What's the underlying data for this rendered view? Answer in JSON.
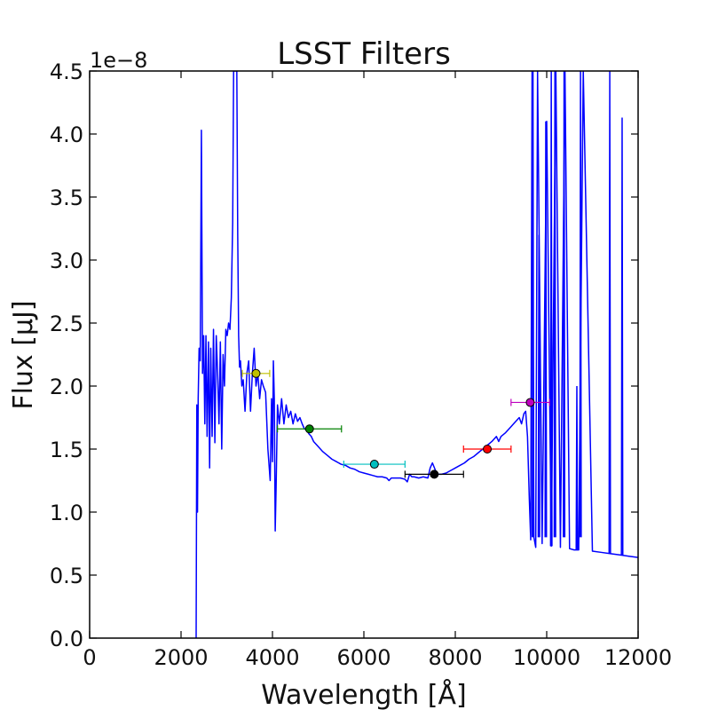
{
  "chart_data": {
    "type": "line",
    "title": "LSST Filters",
    "xlabel": "Wavelength [Å]",
    "ylabel": "Flux [μJ]",
    "offset_text": "1e−8",
    "xlim": [
      0,
      12000
    ],
    "ylim": [
      0,
      4.5
    ],
    "x_ticks": [
      0,
      2000,
      4000,
      6000,
      8000,
      10000,
      12000
    ],
    "x_tick_labels": [
      "0",
      "2000",
      "4000",
      "6000",
      "8000",
      "10000",
      "12000"
    ],
    "y_ticks": [
      0,
      0.5,
      1.0,
      1.5,
      2.0,
      2.5,
      3.0,
      3.5,
      4.0,
      4.5
    ],
    "y_tick_labels": [
      "0.0",
      "0.5",
      "1.0",
      "1.5",
      "2.0",
      "2.5",
      "3.0",
      "3.5",
      "4.0",
      "4.5"
    ],
    "grid": false,
    "spectrum": {
      "color": "#0000ff",
      "x": [
        2330,
        2345,
        2360,
        2375,
        2395,
        2420,
        2445,
        2470,
        2495,
        2520,
        2545,
        2570,
        2600,
        2625,
        2650,
        2680,
        2710,
        2740,
        2770,
        2800,
        2830,
        2860,
        2890,
        2920,
        2950,
        2980,
        3010,
        3040,
        3070,
        3100,
        3130,
        3150,
        3175,
        3200,
        3220,
        3240,
        3260,
        3280,
        3300,
        3330,
        3360,
        3400,
        3440,
        3480,
        3520,
        3560,
        3600,
        3640,
        3680,
        3720,
        3760,
        3800,
        3850,
        3900,
        3950,
        3980,
        4000,
        4020,
        4040,
        4060,
        4080,
        4110,
        4150,
        4200,
        4250,
        4300,
        4350,
        4400,
        4450,
        4500,
        4550,
        4600,
        4650,
        4700,
        4750,
        4800,
        4850,
        4900,
        5000,
        5100,
        5200,
        5300,
        5400,
        5500,
        5600,
        5700,
        5800,
        5900,
        6000,
        6100,
        6200,
        6300,
        6400,
        6500,
        6550,
        6600,
        6700,
        6800,
        6900,
        6950,
        7000,
        7050,
        7100,
        7200,
        7300,
        7400,
        7450,
        7500,
        7600,
        7700,
        7800,
        7900,
        8000,
        8100,
        8200,
        8300,
        8400,
        8500,
        8600,
        8700,
        8800,
        8900,
        8950,
        9000,
        9100,
        9200,
        9300,
        9400,
        9450,
        9500,
        9540,
        9580,
        9620,
        9650,
        9680,
        9720,
        9760,
        9800,
        9900,
        10000,
        10100,
        10200,
        10300,
        10400,
        10500,
        10600,
        10700,
        10800,
        11000,
        11200,
        11400,
        11600,
        11800,
        12000
      ],
      "y": [
        0.0,
        1.85,
        1.0,
        1.9,
        2.3,
        2.2,
        4.03,
        2.1,
        2.4,
        1.7,
        2.4,
        1.6,
        2.35,
        1.35,
        2.3,
        1.6,
        2.45,
        1.55,
        2.4,
        2.1,
        1.7,
        2.35,
        1.5,
        2.25,
        2.0,
        2.45,
        2.4,
        2.5,
        2.45,
        2.7,
        3.3,
        4.5,
        4.5,
        4.5,
        4.5,
        3.2,
        2.4,
        2.15,
        2.2,
        2.0,
        2.05,
        1.8,
        2.1,
        2.2,
        1.8,
        2.1,
        2.3,
        2.0,
        2.1,
        1.9,
        2.05,
        2.0,
        1.95,
        1.5,
        1.25,
        1.9,
        1.4,
        2.2,
        1.9,
        0.85,
        1.2,
        1.85,
        1.7,
        1.9,
        1.7,
        1.85,
        1.75,
        1.8,
        1.7,
        1.78,
        1.72,
        1.75,
        1.7,
        1.66,
        1.65,
        1.62,
        1.6,
        1.56,
        1.52,
        1.48,
        1.45,
        1.42,
        1.4,
        1.38,
        1.37,
        1.35,
        1.34,
        1.32,
        1.31,
        1.3,
        1.29,
        1.28,
        1.28,
        1.27,
        1.25,
        1.27,
        1.27,
        1.27,
        1.26,
        1.24,
        1.3,
        1.28,
        1.28,
        1.27,
        1.28,
        1.27,
        1.35,
        1.39,
        1.3,
        1.3,
        1.31,
        1.33,
        1.35,
        1.37,
        1.39,
        1.42,
        1.44,
        1.47,
        1.5,
        1.53,
        1.56,
        1.6,
        1.56,
        1.6,
        1.63,
        1.67,
        1.71,
        1.75,
        1.7,
        1.78,
        1.8,
        1.6,
        1.1,
        0.78,
        4.5,
        0.8,
        0.72,
        4.5,
        0.75,
        4.1,
        0.73,
        4.5,
        0.72,
        4.5,
        0.71,
        0.7,
        0.7,
        4.5,
        0.69,
        0.68,
        0.67,
        0.66,
        0.65,
        0.64
      ],
      "emission_spikes": [
        {
          "x": 9700,
          "peak": 4.5
        },
        {
          "x": 9830,
          "peak": 3.2
        },
        {
          "x": 9980,
          "peak": 4.1
        },
        {
          "x": 10100,
          "peak": 4.5
        },
        {
          "x": 10180,
          "peak": 4.5
        },
        {
          "x": 10380,
          "peak": 4.5
        },
        {
          "x": 10660,
          "peak": 2.0
        },
        {
          "x": 10740,
          "peak": 4.5
        },
        {
          "x": 11380,
          "peak": 4.5
        },
        {
          "x": 11650,
          "peak": 4.13
        }
      ]
    },
    "filter_points": [
      {
        "x": 3640,
        "y": 2.1,
        "xerr": 300,
        "color": "#bfbf00"
      },
      {
        "x": 4810,
        "y": 1.66,
        "xerr": 700,
        "color": "#008000"
      },
      {
        "x": 6230,
        "y": 1.38,
        "xerr": 670,
        "color": "#00bfbf"
      },
      {
        "x": 7540,
        "y": 1.3,
        "xerr": 640,
        "color": "#000000"
      },
      {
        "x": 8700,
        "y": 1.5,
        "xerr": 520,
        "color": "#ff0000"
      },
      {
        "x": 9640,
        "y": 1.87,
        "xerr": 420,
        "color": "#bf00bf"
      }
    ]
  }
}
